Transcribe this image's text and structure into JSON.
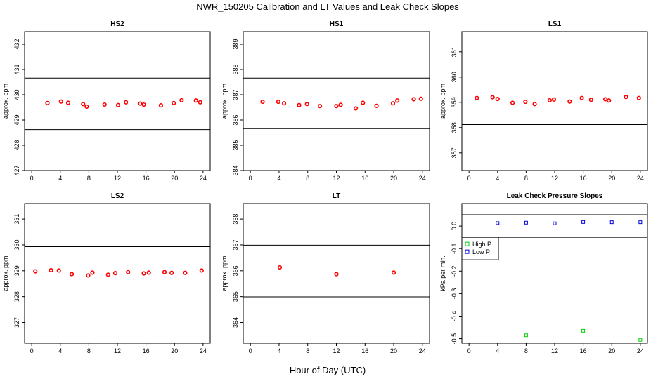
{
  "figure": {
    "title": "NWR_150205  Calibration and LT Values and Leak Check Slopes",
    "xlabel": "Hour of Day (UTC)"
  },
  "chart_data": [
    {
      "type": "scatter",
      "title": "HS2",
      "xlabel": "",
      "ylabel": "approx. ppm",
      "xlim": [
        -1,
        25
      ],
      "ylim": [
        427,
        432.5
      ],
      "xticks": [
        "0",
        "4",
        "8",
        "12",
        "16",
        "20",
        "24"
      ],
      "yticks": [
        "427",
        "428",
        "429",
        "430",
        "431",
        "432"
      ],
      "hlines": [
        430.66,
        428.62
      ],
      "series": [
        {
          "color": "#ff0000",
          "x": [
            2.2,
            4.1,
            5.1,
            7.2,
            7.7,
            10.2,
            12.1,
            13.2,
            15.2,
            15.7,
            18.1,
            19.9,
            21.0,
            23.0,
            23.6
          ],
          "y": [
            429.67,
            429.73,
            429.68,
            429.63,
            429.53,
            429.61,
            429.59,
            429.7,
            429.65,
            429.61,
            429.58,
            429.67,
            429.78,
            429.77,
            429.7
          ]
        }
      ]
    },
    {
      "type": "scatter",
      "title": "HS1",
      "xlabel": "",
      "ylabel": "approx. ppm",
      "xlim": [
        -1,
        25
      ],
      "ylim": [
        384,
        389.5
      ],
      "xticks": [
        "0",
        "4",
        "8",
        "12",
        "16",
        "20",
        "24"
      ],
      "yticks": [
        "384",
        "385",
        "386",
        "387",
        "388",
        "389"
      ],
      "hlines": [
        387.66,
        385.66
      ],
      "series": [
        {
          "color": "#ff0000",
          "x": [
            1.7,
            3.9,
            4.7,
            6.8,
            7.9,
            9.7,
            12.0,
            12.6,
            14.7,
            15.7,
            17.6,
            19.9,
            20.5,
            22.8,
            23.8
          ],
          "y": [
            386.72,
            386.72,
            386.66,
            386.59,
            386.63,
            386.55,
            386.55,
            386.6,
            386.46,
            386.68,
            386.56,
            386.66,
            386.77,
            386.82,
            386.84
          ]
        }
      ]
    },
    {
      "type": "scatter",
      "title": "LS1",
      "xlabel": "",
      "ylabel": "approx. ppm",
      "xlim": [
        -1,
        25
      ],
      "ylim": [
        356.3,
        361.8
      ],
      "xticks": [
        "0",
        "4",
        "8",
        "12",
        "16",
        "20",
        "24"
      ],
      "yticks": [
        "357",
        "358",
        "359",
        "360",
        "361"
      ],
      "hlines": [
        360.12,
        358.12
      ],
      "series": [
        {
          "color": "#ff0000",
          "x": [
            1.1,
            3.3,
            4.0,
            6.1,
            7.9,
            9.2,
            11.3,
            11.9,
            14.1,
            15.8,
            17.1,
            19.1,
            19.6,
            22.0,
            23.8
          ],
          "y": [
            359.17,
            359.2,
            359.13,
            358.98,
            359.02,
            358.93,
            359.08,
            359.11,
            359.03,
            359.17,
            359.1,
            359.12,
            359.07,
            359.21,
            359.17
          ]
        }
      ]
    },
    {
      "type": "scatter",
      "title": "LS2",
      "xlabel": "",
      "ylabel": "approx. ppm",
      "xlim": [
        -1,
        25
      ],
      "ylim": [
        326.2,
        331.6
      ],
      "xticks": [
        "0",
        "4",
        "8",
        "12",
        "16",
        "20",
        "24"
      ],
      "yticks": [
        "327",
        "328",
        "329",
        "330",
        "331"
      ],
      "hlines": [
        329.93,
        327.95
      ],
      "series": [
        {
          "color": "#ff0000",
          "x": [
            0.5,
            2.7,
            3.8,
            5.6,
            7.9,
            8.5,
            10.7,
            11.7,
            13.5,
            15.7,
            16.4,
            18.6,
            19.6,
            21.5,
            23.8
          ],
          "y": [
            328.98,
            329.02,
            329.01,
            328.87,
            328.82,
            328.93,
            328.85,
            328.91,
            328.95,
            328.9,
            328.93,
            328.95,
            328.92,
            328.92,
            329.01
          ]
        }
      ]
    },
    {
      "type": "scatter",
      "title": "LT",
      "xlabel": "",
      "ylabel": "approx. ppm",
      "xlim": [
        -1,
        25
      ],
      "ylim": [
        363.2,
        368.6
      ],
      "xticks": [
        "0",
        "4",
        "8",
        "12",
        "16",
        "20",
        "24"
      ],
      "yticks": [
        "364",
        "365",
        "366",
        "367",
        "368"
      ],
      "hlines": [
        366.99,
        364.99
      ],
      "series": [
        {
          "color": "#ff0000",
          "x": [
            4.1,
            12.0,
            20.0
          ],
          "y": [
            366.13,
            365.87,
            365.93
          ]
        }
      ]
    },
    {
      "type": "scatter",
      "title": "Leak Check Pressure Slopes",
      "xlabel": "",
      "ylabel": "kPa per min.",
      "xlim": [
        -1,
        25
      ],
      "ylim": [
        -0.52,
        0.1
      ],
      "xticks": [
        "0",
        "4",
        "8",
        "12",
        "16",
        "20",
        "24"
      ],
      "yticks": [
        "-0.5",
        "-0.4",
        "-0.3",
        "-0.2",
        "-0.1",
        "0.0"
      ],
      "hlines": [
        0.05,
        -0.05
      ],
      "legend": "top-left",
      "series": [
        {
          "name": "High P",
          "color": "#00cc00",
          "x": [
            8,
            16,
            24
          ],
          "y": [
            -0.485,
            -0.465,
            -0.505
          ]
        },
        {
          "name": "Low P",
          "color": "#0000dd",
          "x": [
            4,
            8,
            12,
            16,
            20,
            24
          ],
          "y": [
            0.013,
            0.015,
            0.012,
            0.018,
            0.017,
            0.017
          ]
        }
      ]
    }
  ]
}
